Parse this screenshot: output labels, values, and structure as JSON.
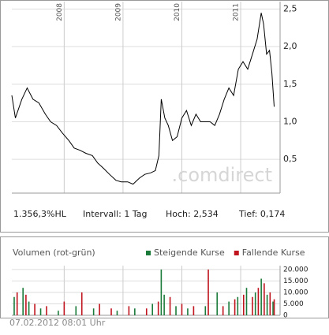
{
  "chart_data": [
    {
      "type": "line",
      "color": "#000000",
      "x": [
        2007.11,
        2007.17,
        2007.28,
        2007.37,
        2007.47,
        2007.57,
        2007.68,
        2007.77,
        2007.87,
        2007.97,
        2008.08,
        2008.17,
        2008.27,
        2008.37,
        2008.48,
        2008.57,
        2008.67,
        2008.77,
        2008.88,
        2008.97,
        2009.08,
        2009.17,
        2009.28,
        2009.37,
        2009.47,
        2009.55,
        2009.61,
        2009.65,
        2009.71,
        2009.77,
        2009.84,
        2009.92,
        2010.0,
        2010.08,
        2010.16,
        2010.24,
        2010.32,
        2010.4,
        2010.48,
        2010.56,
        2010.64,
        2010.72,
        2010.8,
        2010.88,
        2010.96,
        2011.04,
        2011.12,
        2011.2,
        2011.28,
        2011.35,
        2011.39,
        2011.44,
        2011.49,
        2011.53,
        2011.57
      ],
      "values": [
        1.35,
        1.05,
        1.3,
        1.45,
        1.3,
        1.25,
        1.1,
        1.0,
        0.95,
        0.85,
        0.75,
        0.65,
        0.62,
        0.58,
        0.55,
        0.45,
        0.38,
        0.3,
        0.22,
        0.2,
        0.2,
        0.17,
        0.25,
        0.3,
        0.32,
        0.35,
        0.55,
        1.3,
        1.05,
        0.95,
        0.75,
        0.8,
        1.05,
        1.15,
        0.95,
        1.1,
        1.0,
        1.0,
        1.0,
        0.95,
        1.1,
        1.3,
        1.45,
        1.35,
        1.7,
        1.8,
        1.7,
        1.9,
        2.1,
        2.45,
        2.3,
        1.9,
        1.95,
        1.65,
        1.2
      ],
      "xlim": [
        2007.11,
        2011.67
      ],
      "xticks": [
        2008,
        2009,
        2010,
        2011
      ],
      "ylim": [
        0.05,
        2.6
      ],
      "yticks": [
        {
          "value": 0.5,
          "label": "0,5"
        },
        {
          "value": 1.0,
          "label": "1,0"
        },
        {
          "value": 1.5,
          "label": "1,5"
        },
        {
          "value": 2.0,
          "label": "2,0"
        },
        {
          "value": 2.5,
          "label": "2,5"
        }
      ],
      "grid": true,
      "watermark": ".comdirect"
    },
    {
      "type": "bar",
      "title": "Volumen (rot-grün)",
      "series": [
        {
          "name": "Steigende Kurse",
          "color": "#1a7a3a",
          "x": [
            2007.15,
            2007.3,
            2007.4,
            2007.6,
            2007.9,
            2008.2,
            2008.5,
            2008.9,
            2009.2,
            2009.5,
            2009.65,
            2009.7,
            2009.9,
            2010.1,
            2010.4,
            2010.6,
            2010.8,
            2010.95,
            2011.1,
            2011.25,
            2011.35,
            2011.45,
            2011.55
          ],
          "values": [
            8000,
            12000,
            6000,
            3000,
            2000,
            4000,
            3000,
            2000,
            3000,
            5000,
            20000,
            9000,
            4000,
            3000,
            4000,
            10000,
            6000,
            8000,
            12000,
            10000,
            16000,
            9000,
            6000
          ]
        },
        {
          "name": "Fallende Kurse",
          "color": "#c0141e",
          "x": [
            2007.2,
            2007.35,
            2007.5,
            2007.7,
            2008.0,
            2008.3,
            2008.6,
            2008.8,
            2009.1,
            2009.4,
            2009.6,
            2009.8,
            2010.0,
            2010.2,
            2010.45,
            2010.7,
            2010.9,
            2011.05,
            2011.2,
            2011.3,
            2011.4,
            2011.5,
            2011.57
          ],
          "values": [
            10000,
            9000,
            5000,
            4000,
            6000,
            10000,
            5000,
            3000,
            4000,
            3000,
            6000,
            8000,
            5000,
            4000,
            20000,
            4000,
            7000,
            9000,
            8000,
            12000,
            14000,
            10000,
            7000
          ]
        }
      ],
      "xlim": [
        2007.11,
        2011.67
      ],
      "xticks": [
        2008,
        2009,
        2010,
        2011
      ],
      "ylim": [
        0,
        21700
      ],
      "yticks": [
        0,
        {
          "value": 5000,
          "label": "5.000"
        },
        {
          "value": 10000,
          "label": "10.000"
        },
        {
          "value": 15000,
          "label": "15.000"
        },
        {
          "value": 20000,
          "label": "20.000"
        }
      ],
      "grid": true
    }
  ],
  "info": {
    "change": "1.356,3%HL",
    "interval": "Intervall: 1 Tag",
    "high": "Hoch:  2,534",
    "low": "Tief:  0,174"
  },
  "timestamp": "07.02.2012 08:01 Uhr"
}
